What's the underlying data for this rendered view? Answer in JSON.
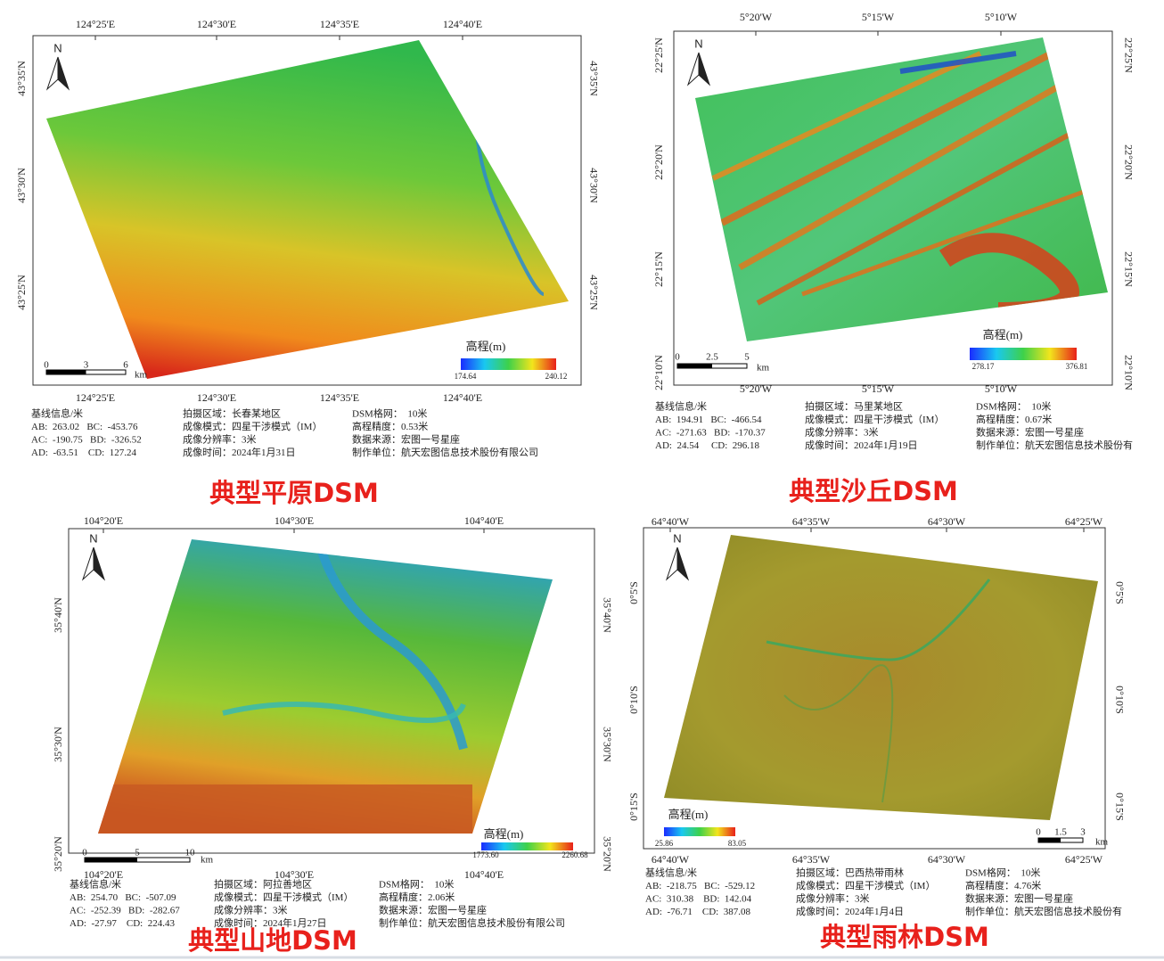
{
  "panels": [
    {
      "caption": "典型平原DSM",
      "lon_labels": [
        "124°25'E",
        "124°30'E",
        "124°35'E",
        "124°40'E"
      ],
      "lat_labels": [
        "43°35'N",
        "43°30'N",
        "43°25'N"
      ],
      "north": "N",
      "legend": {
        "title": "高程(m)",
        "min": "174.64",
        "max": "240.12"
      },
      "scale": {
        "ticks": [
          "0",
          "3",
          "6"
        ],
        "unit": "km"
      },
      "info": [
        [
          "基线信息/米",
          "AB:  263.02   BC:  -453.76",
          "AC:  -190.75   BD:  -326.52",
          "AD:  -63.51    CD:  127.24"
        ],
        [
          "拍摄区域：长春某地区",
          "成像模式：四星干涉模式（IM）",
          "成像分辨率：3米",
          "成像时间：2024年1月31日"
        ],
        [
          "DSM格网：  10米",
          "高程精度：0.53米",
          "数据来源：宏图一号星座",
          "制作单位：航天宏图信息技术股份有限公司"
        ]
      ]
    },
    {
      "caption": "典型沙丘DSM",
      "lon_labels": [
        "5°20'W",
        "5°15'W",
        "5°10'W"
      ],
      "lat_labels": [
        "22°25'N",
        "22°20'N",
        "22°15'N",
        "22°10'N"
      ],
      "north": "N",
      "legend": {
        "title": "高程(m)",
        "min": "278.17",
        "max": "376.81"
      },
      "scale": {
        "ticks": [
          "0",
          "2.5",
          "5"
        ],
        "unit": "km"
      },
      "info": [
        [
          "基线信息/米",
          "AB:  194.91   BC:  -466.54",
          "AC:  -271.63   BD:  -170.37",
          "AD:  24.54     CD:  296.18"
        ],
        [
          "拍摄区域：马里某地区",
          "成像模式：四星干涉模式（IM）",
          "成像分辨率：3米",
          "成像时间：2024年1月19日"
        ],
        [
          "DSM格网：  10米",
          "高程精度：0.67米",
          "数据来源：宏图一号星座",
          "制作单位：航天宏图信息技术股份有"
        ]
      ]
    },
    {
      "caption": "典型山地DSM",
      "lon_labels": [
        "104°20'E",
        "104°30'E",
        "104°40'E"
      ],
      "lat_labels": [
        "35°40'N",
        "35°30'N",
        "35°20'N"
      ],
      "north": "N",
      "legend": {
        "title": "高程(m)",
        "min": "1773.60",
        "max": "2260.68"
      },
      "scale": {
        "ticks": [
          "0",
          "5",
          "10"
        ],
        "unit": "km"
      },
      "info": [
        [
          "基线信息/米",
          "AB:  254.70   BC:  -507.09",
          "AC:  -252.39   BD:  -282.67",
          "AD:  -27.97    CD:  224.43"
        ],
        [
          "拍摄区域：阿拉善地区",
          "成像模式：四星干涉模式（IM）",
          "成像分辨率：3米",
          "成像时间：2024年1月27日"
        ],
        [
          "DSM格网：  10米",
          "高程精度：2.06米",
          "数据来源：宏图一号星座",
          "制作单位：航天宏图信息技术股份有限公司"
        ]
      ]
    },
    {
      "caption": "典型雨林DSM",
      "lon_labels": [
        "64°40'W",
        "64°35'W",
        "64°30'W",
        "64°25'W"
      ],
      "lat_labels": [
        "0°5'S",
        "0°10'S",
        "0°15'S"
      ],
      "north": "N",
      "legend": {
        "title": "高程(m)",
        "min": "25.86",
        "max": "83.05"
      },
      "scale": {
        "ticks": [
          "0",
          "1.5",
          "3"
        ],
        "unit": "km"
      },
      "info": [
        [
          "基线信息/米",
          "AB:  -218.75   BC:  -529.12",
          "AC:  310.38    BD:  142.04",
          "AD:  -76.71    CD:  387.08"
        ],
        [
          "拍摄区域：巴西热带雨林",
          "成像模式：四星干涉模式（IM）",
          "成像分辨率：3米",
          "成像时间：2024年1月4日"
        ],
        [
          "DSM格网：  10米",
          "高程精度：4.76米",
          "数据来源：宏图一号星座",
          "制作单位：航天宏图信息技术股份有"
        ]
      ]
    }
  ]
}
